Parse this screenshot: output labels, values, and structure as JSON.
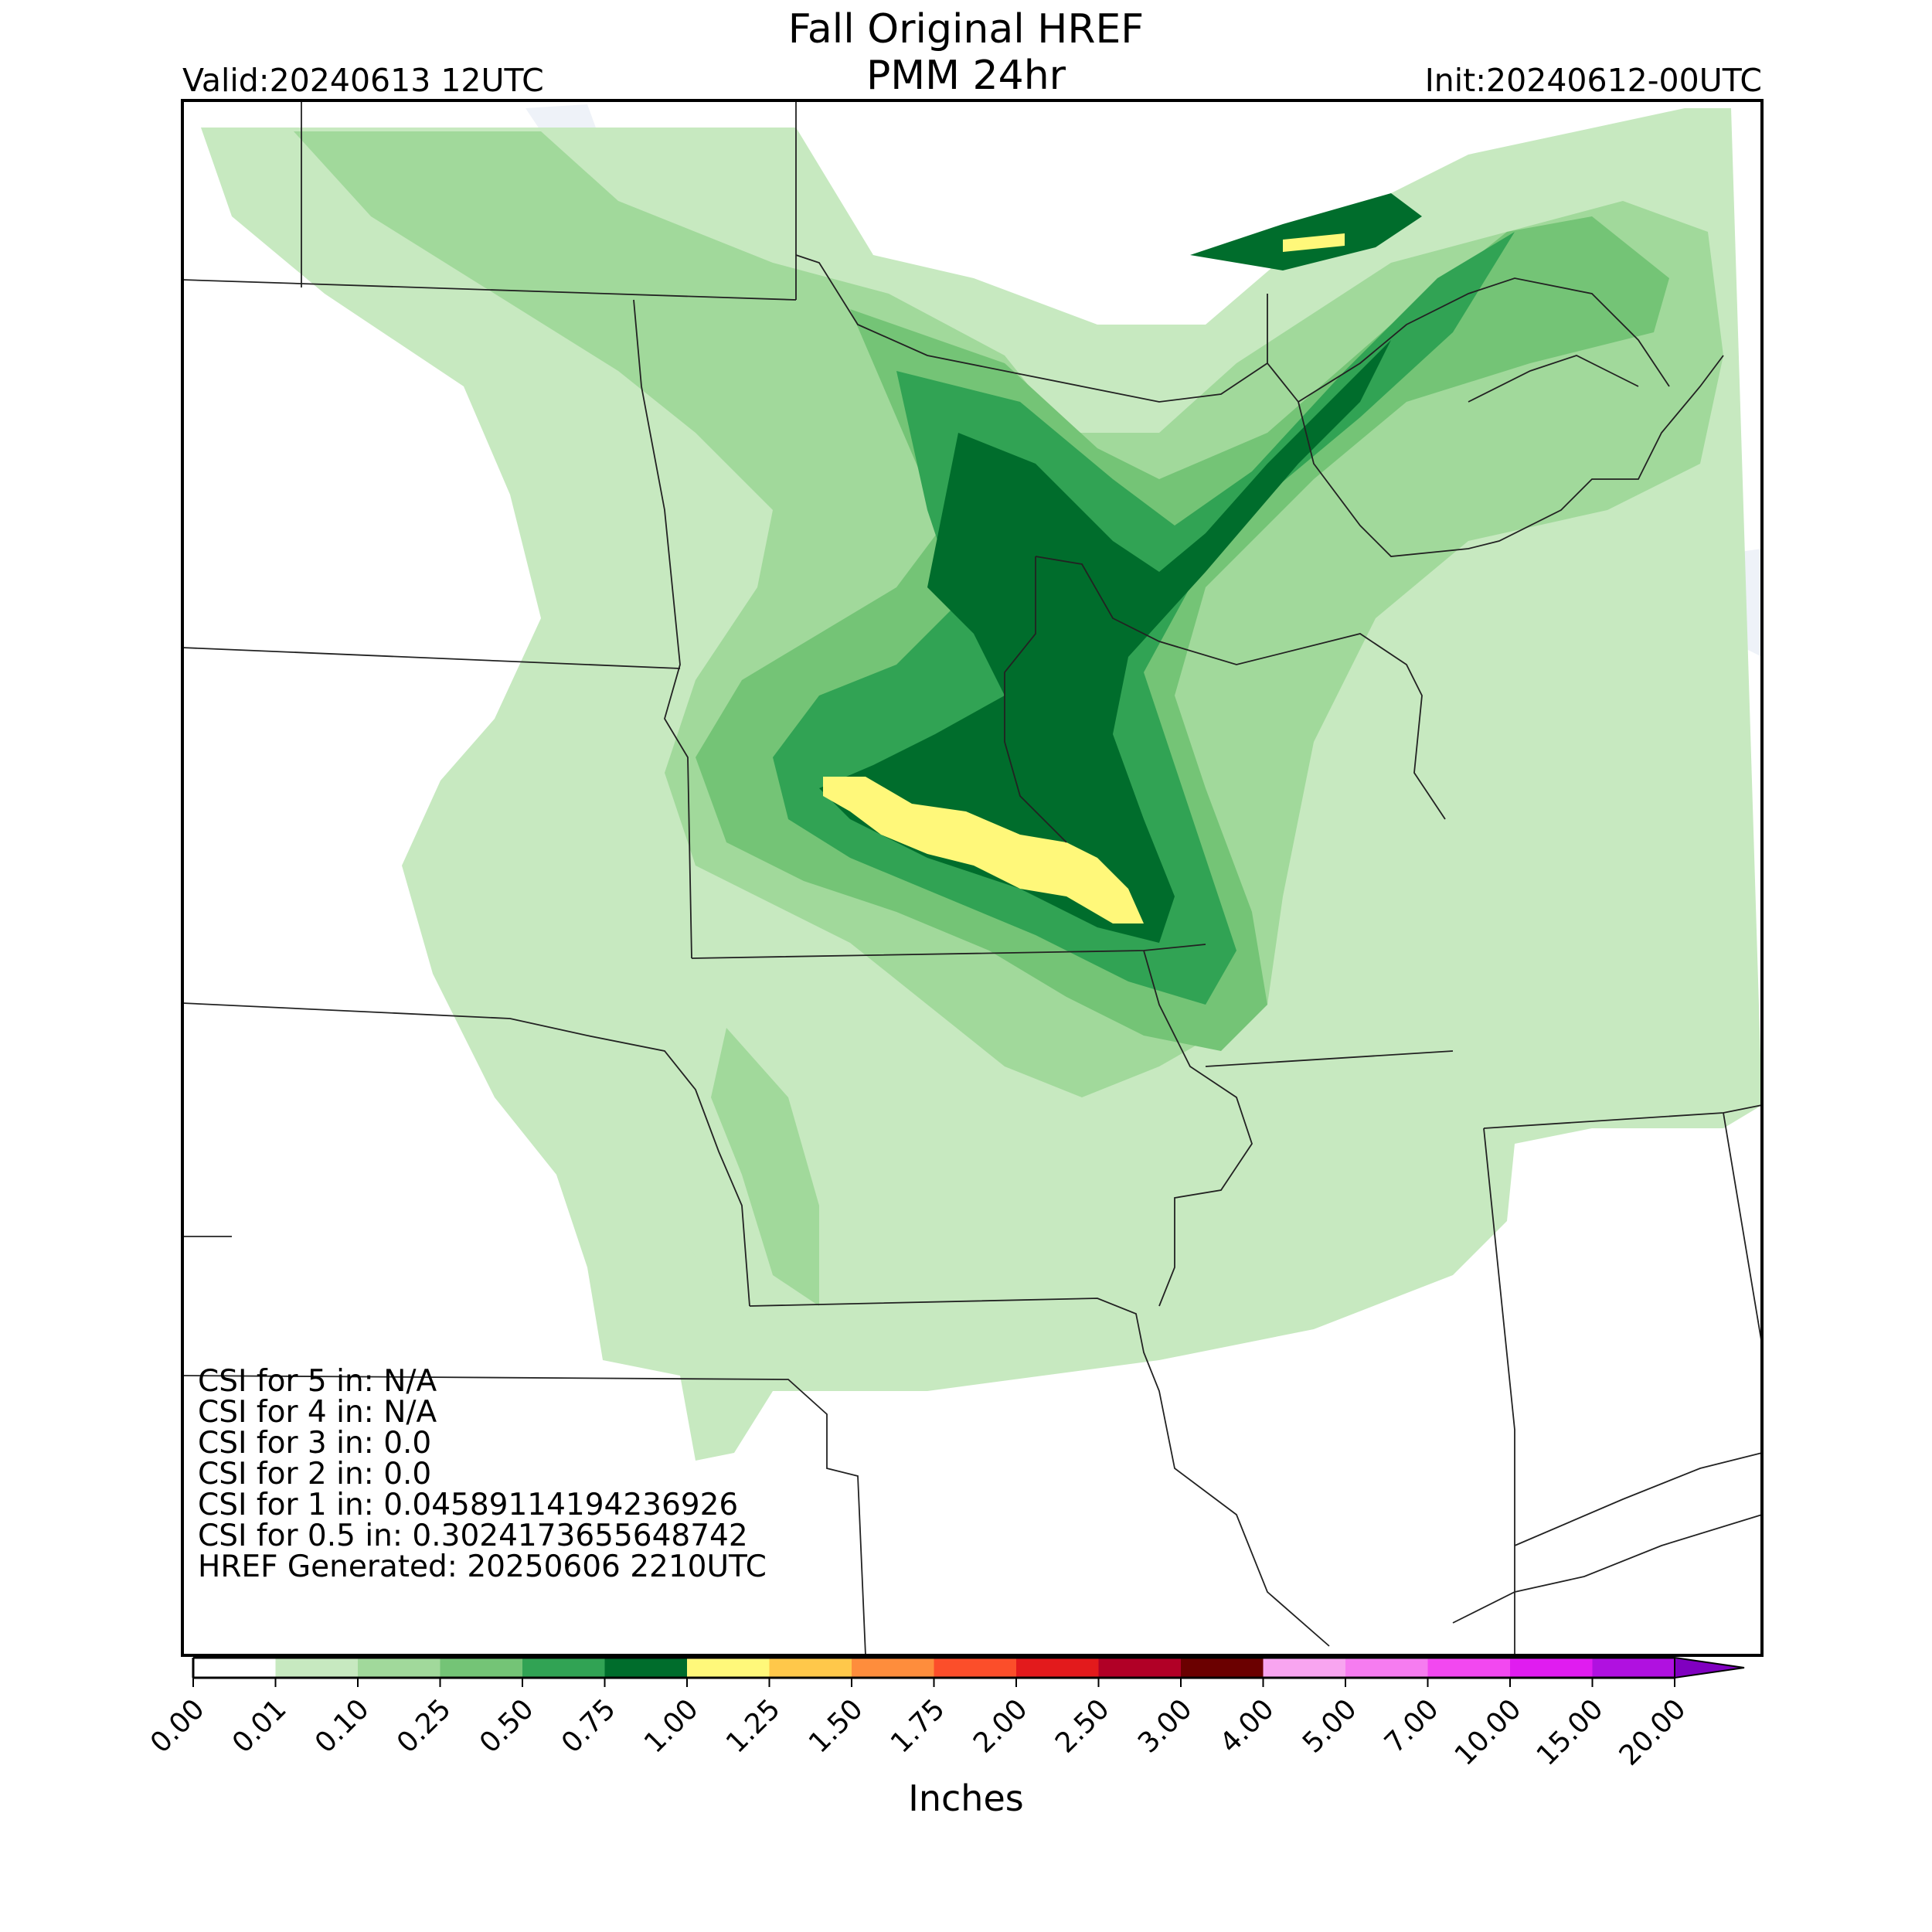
{
  "header": {
    "title_line1": "Fall Original HREF",
    "title_line2": "PMM 24hr",
    "valid": "Valid:20240613 12UTC",
    "init": "Init:20240612-00UTC"
  },
  "stats": [
    "CSI for 5 in: N/A",
    "CSI for 4 in: N/A",
    "CSI for 3 in: 0.0",
    "CSI for 2 in: 0.0",
    "CSI for 1 in: 0.04589114194236926",
    "CSI for 0.5 in: 0.3024173655648742",
    "HREF Generated: 20250606 2210UTC"
  ],
  "colorbar": {
    "title": "Inches",
    "ticks": [
      "0.00",
      "0.01",
      "0.10",
      "0.25",
      "0.50",
      "0.75",
      "1.00",
      "1.25",
      "1.50",
      "1.75",
      "2.00",
      "2.50",
      "3.00",
      "4.00",
      "5.00",
      "7.00",
      "10.00",
      "15.00",
      "20.00"
    ],
    "colors": [
      "#ffffff",
      "#c7e9c0",
      "#a1d99b",
      "#74c476",
      "#31a354",
      "#006d2c",
      "#fff87a",
      "#ffc84a",
      "#fe8d3c",
      "#fc4e2a",
      "#e31a1c",
      "#b10026",
      "#6b0000",
      "#f8a5f0",
      "#f67cf0",
      "#f248f0",
      "#e01cf0",
      "#b011e0",
      "#8000c0"
    ]
  },
  "legend_colors": {
    "water": "#eef2f8",
    "light_green": "#c7e9c0",
    "mid_green": "#74c476",
    "dark_green": "#006d2c",
    "yellow": "#fff87a"
  }
}
